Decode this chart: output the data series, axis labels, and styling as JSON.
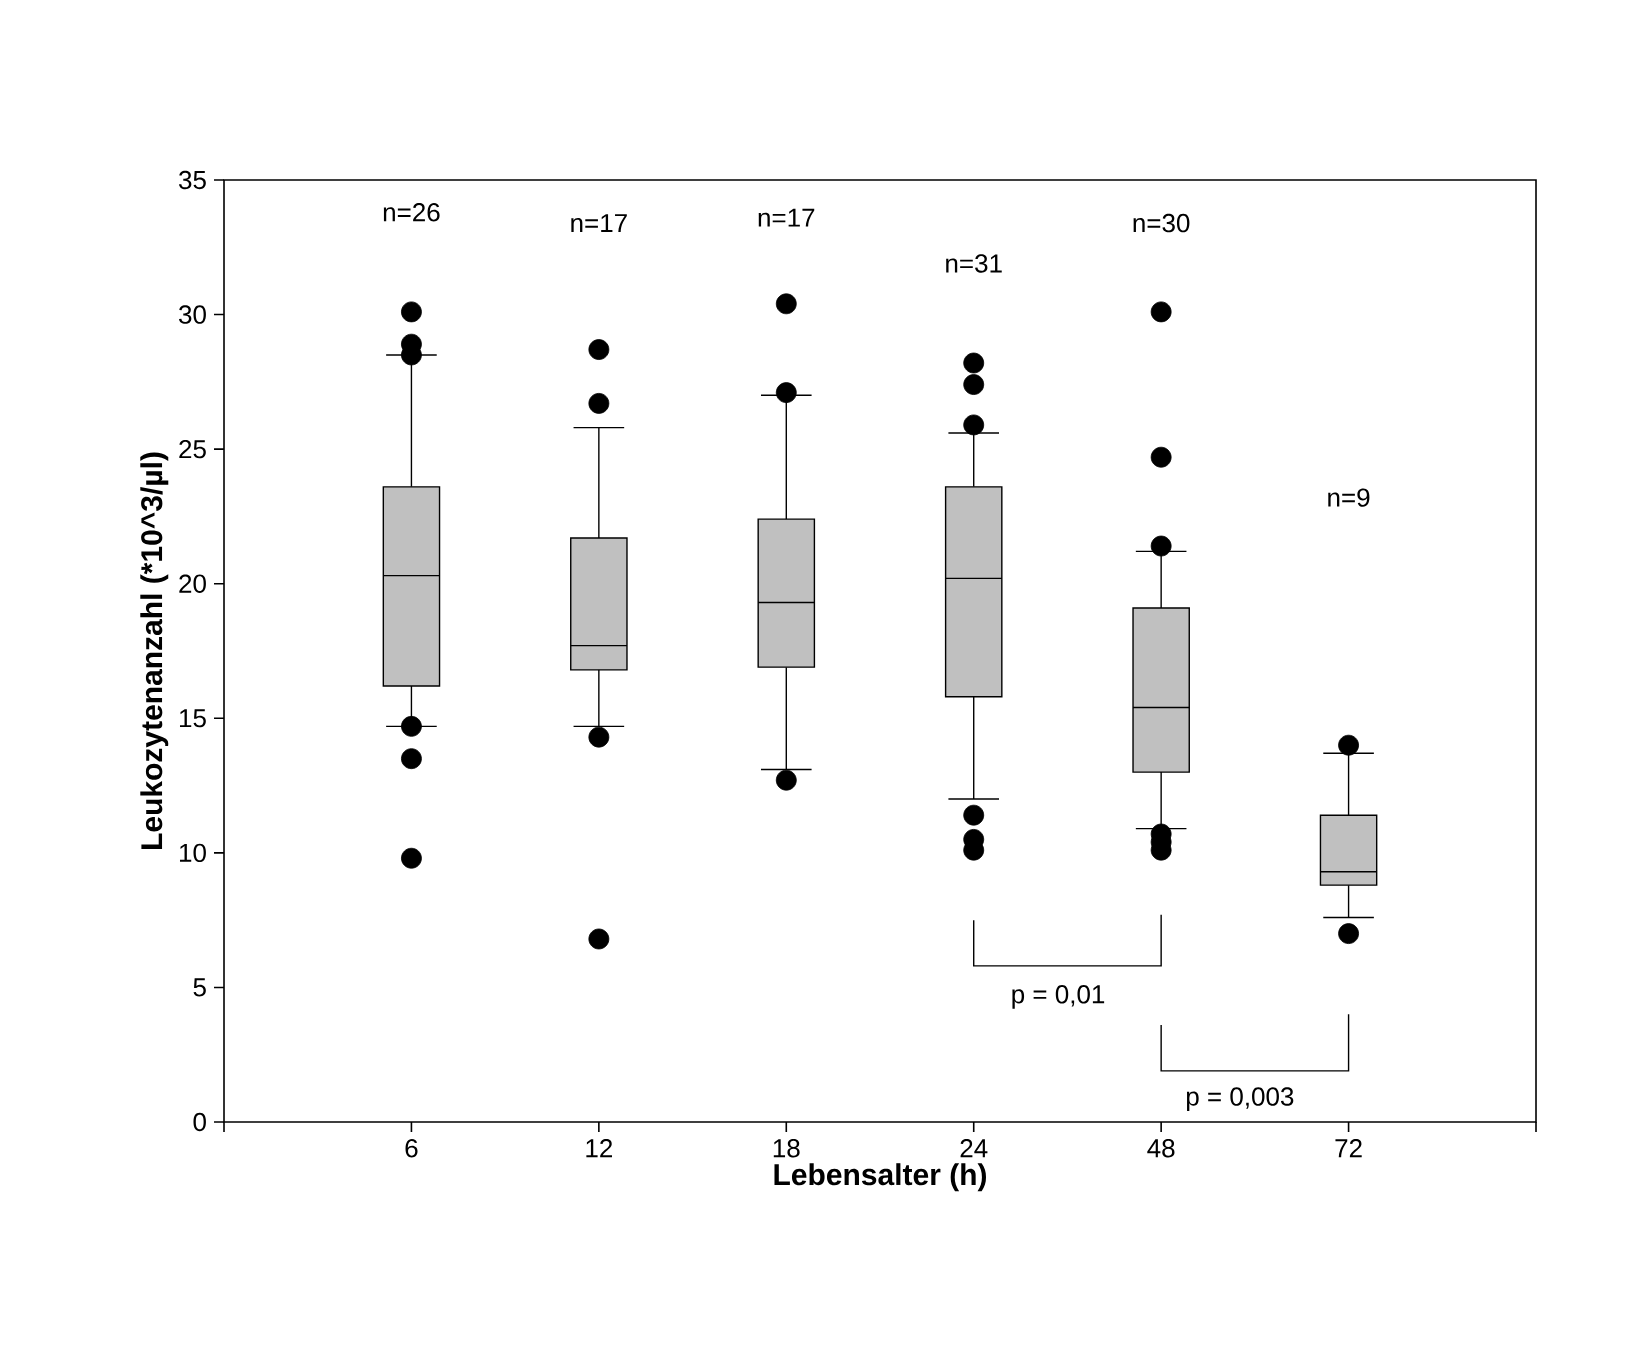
{
  "chart_data": {
    "type": "box",
    "xlabel": "Lebensalter (h)",
    "ylabel": "Leukozytenanzahl (*10^3/µl)",
    "categories": [
      "6",
      "12",
      "18",
      "24",
      "48",
      "72"
    ],
    "ylim": [
      0,
      35
    ],
    "yticks": [
      0,
      5,
      10,
      15,
      20,
      25,
      30,
      35
    ],
    "marker": "circle",
    "series": [
      {
        "color": "#c0c0c0",
        "boxes": [
          {
            "low": 14.7,
            "q1": 16.2,
            "median": 20.3,
            "q3": 23.6,
            "high": 28.5,
            "outliers": [
              30.1,
              28.9,
              28.5,
              14.7,
              13.5,
              9.8
            ]
          },
          {
            "low": 14.7,
            "q1": 16.8,
            "median": 17.7,
            "q3": 21.7,
            "high": 25.8,
            "outliers": [
              28.7,
              26.7,
              14.3,
              6.8
            ]
          },
          {
            "low": 13.1,
            "q1": 16.9,
            "median": 19.3,
            "q3": 22.4,
            "high": 27.0,
            "outliers": [
              30.4,
              27.1,
              12.7
            ]
          },
          {
            "low": 12.0,
            "q1": 15.8,
            "median": 20.2,
            "q3": 23.6,
            "high": 25.6,
            "outliers": [
              28.2,
              27.4,
              25.9,
              11.4,
              10.5,
              10.1
            ]
          },
          {
            "low": 10.9,
            "q1": 13.0,
            "median": 15.4,
            "q3": 19.1,
            "high": 21.2,
            "outliers": [
              30.1,
              24.7,
              21.4,
              10.7,
              10.4,
              10.1
            ]
          },
          {
            "low": 7.6,
            "q1": 8.8,
            "median": 9.3,
            "q3": 11.4,
            "high": 13.7,
            "outliers": [
              14.0,
              7.0
            ]
          }
        ]
      }
    ],
    "annotations": [
      "n=26",
      "n=17",
      "n=17",
      "n=31",
      "n=30",
      "n=9",
      "p = 0,01",
      "p = 0,003"
    ]
  }
}
